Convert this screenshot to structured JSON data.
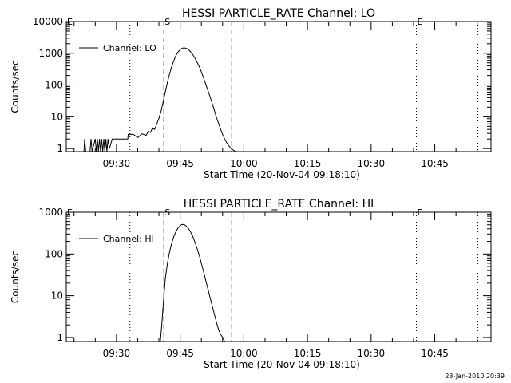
{
  "timestamp": "23-Jan-2010 20:39",
  "chart_data": [
    {
      "type": "line",
      "title": "HESSI PARTICLE_RATE Channel: LO",
      "xlabel": "Start Time (20-Nov-04 09:18:10)",
      "ylabel": "Counts/sec",
      "yscale": "log",
      "ylim": [
        0.8,
        10000
      ],
      "xlim": [
        "09:18:10",
        "10:58:15"
      ],
      "x_tick_labels": [
        "09:30",
        "09:45",
        "10:00",
        "10:15",
        "10:30",
        "10:45"
      ],
      "y_tick_labels": [
        "1",
        "10",
        "100",
        "1000",
        "10000"
      ],
      "legend": {
        "position": "top-left",
        "entries": [
          "Channel: LO"
        ]
      },
      "vertical_markers": [
        {
          "label": "E",
          "time": "09:18:10",
          "style": "dotted"
        },
        {
          "label": "",
          "time": "09:33:10",
          "style": "dotted"
        },
        {
          "label": "S",
          "time": "09:41:10",
          "style": "dashed"
        },
        {
          "label": "",
          "time": "09:57:10",
          "style": "dashed"
        },
        {
          "label": "E",
          "time": "10:40:40",
          "style": "dotted"
        },
        {
          "label": "",
          "time": "10:55:10",
          "style": "dotted"
        }
      ],
      "series": [
        {
          "name": "Channel: LO",
          "points": [
            [
              "09:22:20",
              0.8
            ],
            [
              "09:22:30",
              2
            ],
            [
              "09:22:45",
              0.8
            ],
            [
              "09:23:45",
              0.8
            ],
            [
              "09:24:00",
              2
            ],
            [
              "09:24:15",
              0.8
            ],
            [
              "09:25:00",
              2
            ],
            [
              "09:25:15",
              0.8
            ],
            [
              "09:25:30",
              2
            ],
            [
              "09:25:45",
              0.8
            ],
            [
              "09:26:00",
              2
            ],
            [
              "09:26:15",
              0.8
            ],
            [
              "09:26:30",
              2
            ],
            [
              "09:26:45",
              0.8
            ],
            [
              "09:27:00",
              2
            ],
            [
              "09:27:15",
              0.8
            ],
            [
              "09:27:30",
              2
            ],
            [
              "09:27:45",
              0.8
            ],
            [
              "09:28:00",
              2
            ],
            [
              "09:28:20",
              1
            ],
            [
              "09:29:00",
              2
            ],
            [
              "09:30:00",
              2
            ],
            [
              "09:31:00",
              2
            ],
            [
              "09:32:00",
              2
            ],
            [
              "09:32:40",
              2
            ],
            [
              "09:32:45",
              2.8
            ],
            [
              "09:34:00",
              2.8
            ],
            [
              "09:35:00",
              2.2
            ],
            [
              "09:36:00",
              2.9
            ],
            [
              "09:37:00",
              2.6
            ],
            [
              "09:37:30",
              3.5
            ],
            [
              "09:38:00",
              3.2
            ],
            [
              "09:38:30",
              4.5
            ],
            [
              "09:39:00",
              4
            ],
            [
              "09:39:30",
              6
            ],
            [
              "09:40:00",
              9
            ],
            [
              "09:40:30",
              15
            ],
            [
              "09:41:00",
              30
            ],
            [
              "09:41:30",
              60
            ],
            [
              "09:42:00",
              120
            ],
            [
              "09:42:30",
              220
            ],
            [
              "09:43:00",
              380
            ],
            [
              "09:43:30",
              580
            ],
            [
              "09:44:00",
              850
            ],
            [
              "09:44:30",
              1100
            ],
            [
              "09:45:00",
              1300
            ],
            [
              "09:45:30",
              1450
            ],
            [
              "09:46:00",
              1480
            ],
            [
              "09:46:30",
              1420
            ],
            [
              "09:47:00",
              1300
            ],
            [
              "09:47:30",
              1100
            ],
            [
              "09:48:00",
              900
            ],
            [
              "09:48:30",
              700
            ],
            [
              "09:49:00",
              520
            ],
            [
              "09:49:30",
              380
            ],
            [
              "09:50:00",
              260
            ],
            [
              "09:50:30",
              170
            ],
            [
              "09:51:00",
              110
            ],
            [
              "09:51:30",
              70
            ],
            [
              "09:52:00",
              45
            ],
            [
              "09:52:30",
              28
            ],
            [
              "09:53:00",
              17
            ],
            [
              "09:53:30",
              10
            ],
            [
              "09:54:00",
              6.5
            ],
            [
              "09:54:30",
              4.2
            ],
            [
              "09:55:00",
              2.8
            ],
            [
              "09:55:30",
              2
            ],
            [
              "09:56:00",
              1.5
            ],
            [
              "09:56:30",
              1.2
            ],
            [
              "09:57:00",
              1
            ],
            [
              "09:57:30",
              0.9
            ],
            [
              "09:58:00",
              0.8
            ]
          ]
        }
      ]
    },
    {
      "type": "line",
      "title": "HESSI PARTICLE_RATE Channel: HI",
      "xlabel": "Start Time (20-Nov-04 09:18:10)",
      "ylabel": "Counts/sec",
      "yscale": "log",
      "ylim": [
        0.8,
        1000
      ],
      "xlim": [
        "09:18:10",
        "10:58:15"
      ],
      "x_tick_labels": [
        "09:30",
        "09:45",
        "10:00",
        "10:15",
        "10:30",
        "10:45"
      ],
      "y_tick_labels": [
        "1",
        "10",
        "100",
        "1000"
      ],
      "legend": {
        "position": "top-left",
        "entries": [
          "Channel: HI"
        ]
      },
      "vertical_markers": [
        {
          "label": "E",
          "time": "09:18:10",
          "style": "dotted"
        },
        {
          "label": "",
          "time": "09:33:10",
          "style": "dotted"
        },
        {
          "label": "S",
          "time": "09:41:10",
          "style": "dashed"
        },
        {
          "label": "",
          "time": "09:57:10",
          "style": "dashed"
        },
        {
          "label": "E",
          "time": "10:40:40",
          "style": "dotted"
        },
        {
          "label": "",
          "time": "10:55:10",
          "style": "dotted"
        }
      ],
      "series": [
        {
          "name": "Channel: HI",
          "points": [
            [
              "09:40:20",
              0.8
            ],
            [
              "09:40:40",
              2
            ],
            [
              "09:41:00",
              6
            ],
            [
              "09:41:30",
              25
            ],
            [
              "09:42:00",
              60
            ],
            [
              "09:42:30",
              110
            ],
            [
              "09:43:00",
              180
            ],
            [
              "09:43:30",
              260
            ],
            [
              "09:44:00",
              340
            ],
            [
              "09:44:30",
              420
            ],
            [
              "09:45:00",
              480
            ],
            [
              "09:45:30",
              510
            ],
            [
              "09:46:00",
              500
            ],
            [
              "09:46:30",
              460
            ],
            [
              "09:47:00",
              400
            ],
            [
              "09:47:30",
              330
            ],
            [
              "09:48:00",
              260
            ],
            [
              "09:48:30",
              190
            ],
            [
              "09:49:00",
              135
            ],
            [
              "09:49:30",
              92
            ],
            [
              "09:50:00",
              60
            ],
            [
              "09:50:30",
              38
            ],
            [
              "09:51:00",
              24
            ],
            [
              "09:51:30",
              15
            ],
            [
              "09:52:00",
              9.5
            ],
            [
              "09:52:30",
              6
            ],
            [
              "09:53:00",
              3.8
            ],
            [
              "09:53:30",
              2.4
            ],
            [
              "09:54:00",
              1.6
            ],
            [
              "09:54:30",
              1.2
            ],
            [
              "09:55:00",
              1
            ],
            [
              "09:55:30",
              0.8
            ]
          ]
        }
      ]
    }
  ]
}
